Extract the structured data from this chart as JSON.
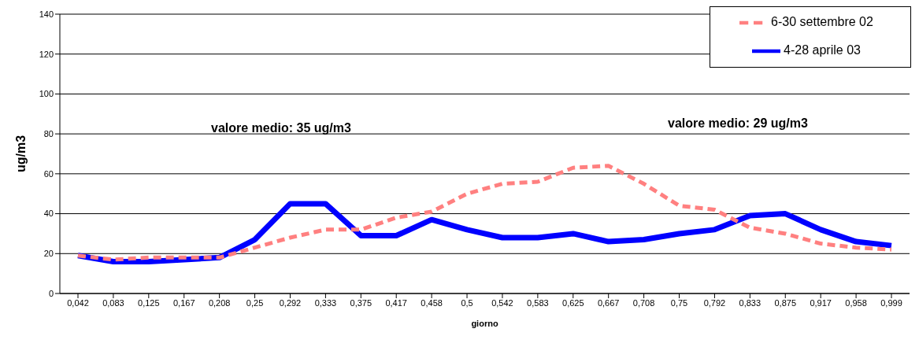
{
  "chart_data": {
    "type": "line",
    "xlabel": "giorno",
    "ylabel": "ug/m3",
    "categories": [
      "0,042",
      "0,083",
      "0,125",
      "0,167",
      "0,208",
      "0,25",
      "0,292",
      "0,333",
      "0,375",
      "0,417",
      "0,458",
      "0,5",
      "0,542",
      "0,583",
      "0,625",
      "0,667",
      "0,708",
      "0,75",
      "0,792",
      "0,833",
      "0,875",
      "0,917",
      "0,958",
      "0,999"
    ],
    "series": [
      {
        "name": "6-30 settembre 02",
        "color": "#ff8080",
        "line_style": "dashed",
        "values": [
          19,
          17,
          18,
          18,
          18,
          23,
          28,
          32,
          32,
          38,
          41,
          50,
          55,
          56,
          63,
          64,
          55,
          44,
          42,
          33,
          30,
          25,
          23,
          22
        ]
      },
      {
        "name": "4-28 aprile 03",
        "color": "#0000ff",
        "line_style": "solid",
        "values": [
          19,
          16,
          16,
          17,
          18,
          27,
          45,
          45,
          29,
          29,
          37,
          32,
          28,
          28,
          30,
          26,
          27,
          30,
          32,
          39,
          40,
          32,
          26,
          24
        ]
      }
    ],
    "ylim": [
      0,
      140
    ],
    "yticks": [
      0,
      20,
      40,
      60,
      80,
      100,
      120,
      140
    ],
    "grid": "y",
    "legend": "top right",
    "marker": "none",
    "annotations": [
      "valore medio: 35 ug/m3",
      "valore medio: 29 ug/m3"
    ]
  }
}
